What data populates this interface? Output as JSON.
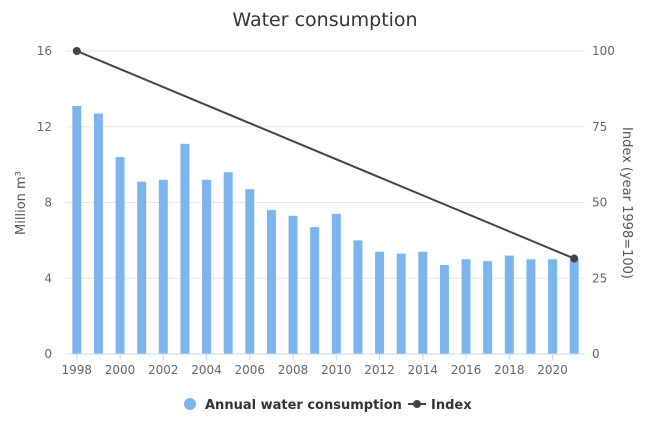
{
  "chart_data": {
    "type": "bar",
    "title": "Water consumption",
    "ylabel_left": "Million m³",
    "ylabel_right": "Index (year 1998=100)",
    "ylim_left": [
      0,
      16
    ],
    "yticks_left": [
      "0",
      "4",
      "8",
      "12",
      "16"
    ],
    "ylim_right": [
      0,
      100
    ],
    "yticks_right": [
      "0",
      "25",
      "50",
      "75",
      "100"
    ],
    "xticks": [
      "1998",
      "2000",
      "2002",
      "2004",
      "2006",
      "2008",
      "2010",
      "2012",
      "2014",
      "2016",
      "2018",
      "2020"
    ],
    "categories": [
      1998,
      1999,
      2000,
      2001,
      2002,
      2003,
      2004,
      2005,
      2006,
      2007,
      2008,
      2009,
      2010,
      2011,
      2012,
      2013,
      2014,
      2015,
      2016,
      2017,
      2018,
      2019,
      2020,
      2021
    ],
    "series": [
      {
        "name": "Annual water consumption",
        "type": "bar",
        "axis": "left",
        "color": "#7cb5ec",
        "values": [
          13.1,
          12.7,
          10.4,
          9.1,
          9.2,
          11.1,
          9.2,
          9.6,
          8.7,
          7.6,
          7.3,
          6.7,
          7.4,
          6.0,
          5.4,
          5.3,
          5.4,
          4.7,
          5.0,
          4.9,
          5.2,
          5.0,
          5.0,
          5.0
        ]
      },
      {
        "name": "Index",
        "type": "line",
        "axis": "right",
        "color": "#434348",
        "points": [
          [
            1998,
            100
          ],
          [
            2021,
            31.5
          ]
        ]
      }
    ],
    "legend": "bottom-center"
  }
}
